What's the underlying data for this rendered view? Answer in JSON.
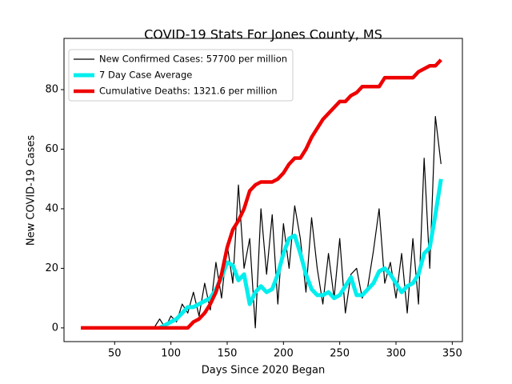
{
  "chart_data": {
    "type": "line",
    "title": "COVID-19 Stats For Jones County, MS",
    "xlabel": "Days Since 2020 Began",
    "ylabel": "New COVID-19 Cases",
    "x": [
      20,
      25,
      30,
      35,
      40,
      45,
      50,
      55,
      60,
      65,
      70,
      75,
      80,
      85,
      90,
      95,
      100,
      105,
      110,
      115,
      120,
      125,
      130,
      135,
      140,
      145,
      150,
      155,
      160,
      165,
      170,
      175,
      180,
      185,
      190,
      195,
      200,
      205,
      210,
      215,
      220,
      225,
      230,
      235,
      240,
      245,
      250,
      255,
      260,
      265,
      270,
      275,
      280,
      285,
      290,
      295,
      300,
      305,
      310,
      315,
      320,
      325,
      330,
      335,
      340
    ],
    "series": [
      {
        "name": "New Confirmed Cases: 57700 per million",
        "color": "#000000",
        "values": [
          null,
          null,
          null,
          null,
          null,
          null,
          null,
          null,
          null,
          null,
          null,
          null,
          0,
          0,
          3,
          0,
          4,
          2,
          8,
          5,
          12,
          4,
          15,
          6,
          22,
          10,
          28,
          15,
          48,
          20,
          30,
          0,
          40,
          18,
          38,
          8,
          35,
          20,
          41,
          30,
          12,
          37,
          20,
          8,
          25,
          10,
          30,
          5,
          18,
          20,
          10,
          14,
          26,
          40,
          15,
          22,
          10,
          25,
          5,
          30,
          8,
          57,
          20,
          71,
          55
        ]
      },
      {
        "name": "7 Day Case Average",
        "color": "#00eeee",
        "values": [
          null,
          null,
          null,
          null,
          null,
          null,
          null,
          null,
          null,
          null,
          null,
          null,
          null,
          null,
          0,
          1,
          2,
          3,
          5,
          7,
          7,
          8,
          9,
          10,
          13,
          17,
          22,
          21,
          16,
          18,
          8,
          12,
          14,
          12,
          13,
          18,
          25,
          30,
          31,
          25,
          18,
          13,
          11,
          11,
          12,
          10,
          11,
          14,
          17,
          11,
          11,
          13,
          15,
          19,
          20,
          18,
          15,
          12,
          14,
          15,
          18,
          25,
          27,
          38,
          50
        ]
      },
      {
        "name": "Cumulative Deaths: 1321.6 per million",
        "color": "#ee0000",
        "values": [
          0,
          0,
          0,
          0,
          0,
          0,
          0,
          0,
          0,
          0,
          0,
          0,
          0,
          0,
          0,
          0,
          0,
          0,
          0,
          0,
          2,
          3,
          5,
          8,
          12,
          18,
          27,
          33,
          36,
          40,
          46,
          48,
          49,
          49,
          49,
          50,
          52,
          55,
          57,
          57,
          60,
          64,
          67,
          70,
          72,
          74,
          76,
          76,
          78,
          79,
          81,
          81,
          81,
          81,
          84,
          84,
          84,
          84,
          84,
          84,
          86,
          87,
          88,
          88,
          90
        ]
      }
    ],
    "xlim": [
      5,
      359
    ],
    "ylim": [
      -4.6,
      97.2
    ],
    "xticks": [
      50,
      100,
      150,
      200,
      250,
      300,
      350
    ],
    "yticks": [
      0,
      20,
      40,
      60,
      80
    ],
    "legend": "upper left"
  }
}
